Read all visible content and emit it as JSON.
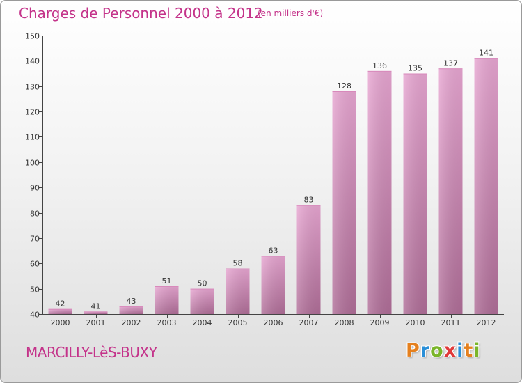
{
  "header": {
    "title": "Charges de Personnel 2000 à 2012",
    "unit": "(en milliers d'€)"
  },
  "footer": {
    "city": "MARCILLY-LèS-BUXY",
    "logo_letters": [
      "P",
      "r",
      "o",
      "x",
      "i",
      "t",
      "i"
    ],
    "logo_colors": [
      "#e5801e",
      "#2a8fd8",
      "#7ab52a",
      "#e03a3a",
      "#2a8fd8",
      "#e5801e",
      "#7ab52a"
    ]
  },
  "colors": {
    "title": "#c4338a",
    "bar_top": "#e8a6d2",
    "bar_bottom": "#b06e98",
    "axis": "#444444"
  },
  "chart_data": {
    "type": "bar",
    "title": "Charges de Personnel 2000 à 2012",
    "ylabel": "(en milliers d'€)",
    "xlabel": "",
    "categories": [
      "2000",
      "2001",
      "2002",
      "2003",
      "2004",
      "2005",
      "2006",
      "2007",
      "2008",
      "2009",
      "2010",
      "2011",
      "2012"
    ],
    "values": [
      42,
      41,
      43,
      51,
      50,
      58,
      63,
      83,
      128,
      136,
      135,
      137,
      141
    ],
    "ylim": [
      40,
      150
    ],
    "yticks": [
      40,
      50,
      60,
      70,
      80,
      90,
      100,
      110,
      120,
      130,
      140,
      150
    ],
    "grid": false,
    "legend": "none"
  }
}
